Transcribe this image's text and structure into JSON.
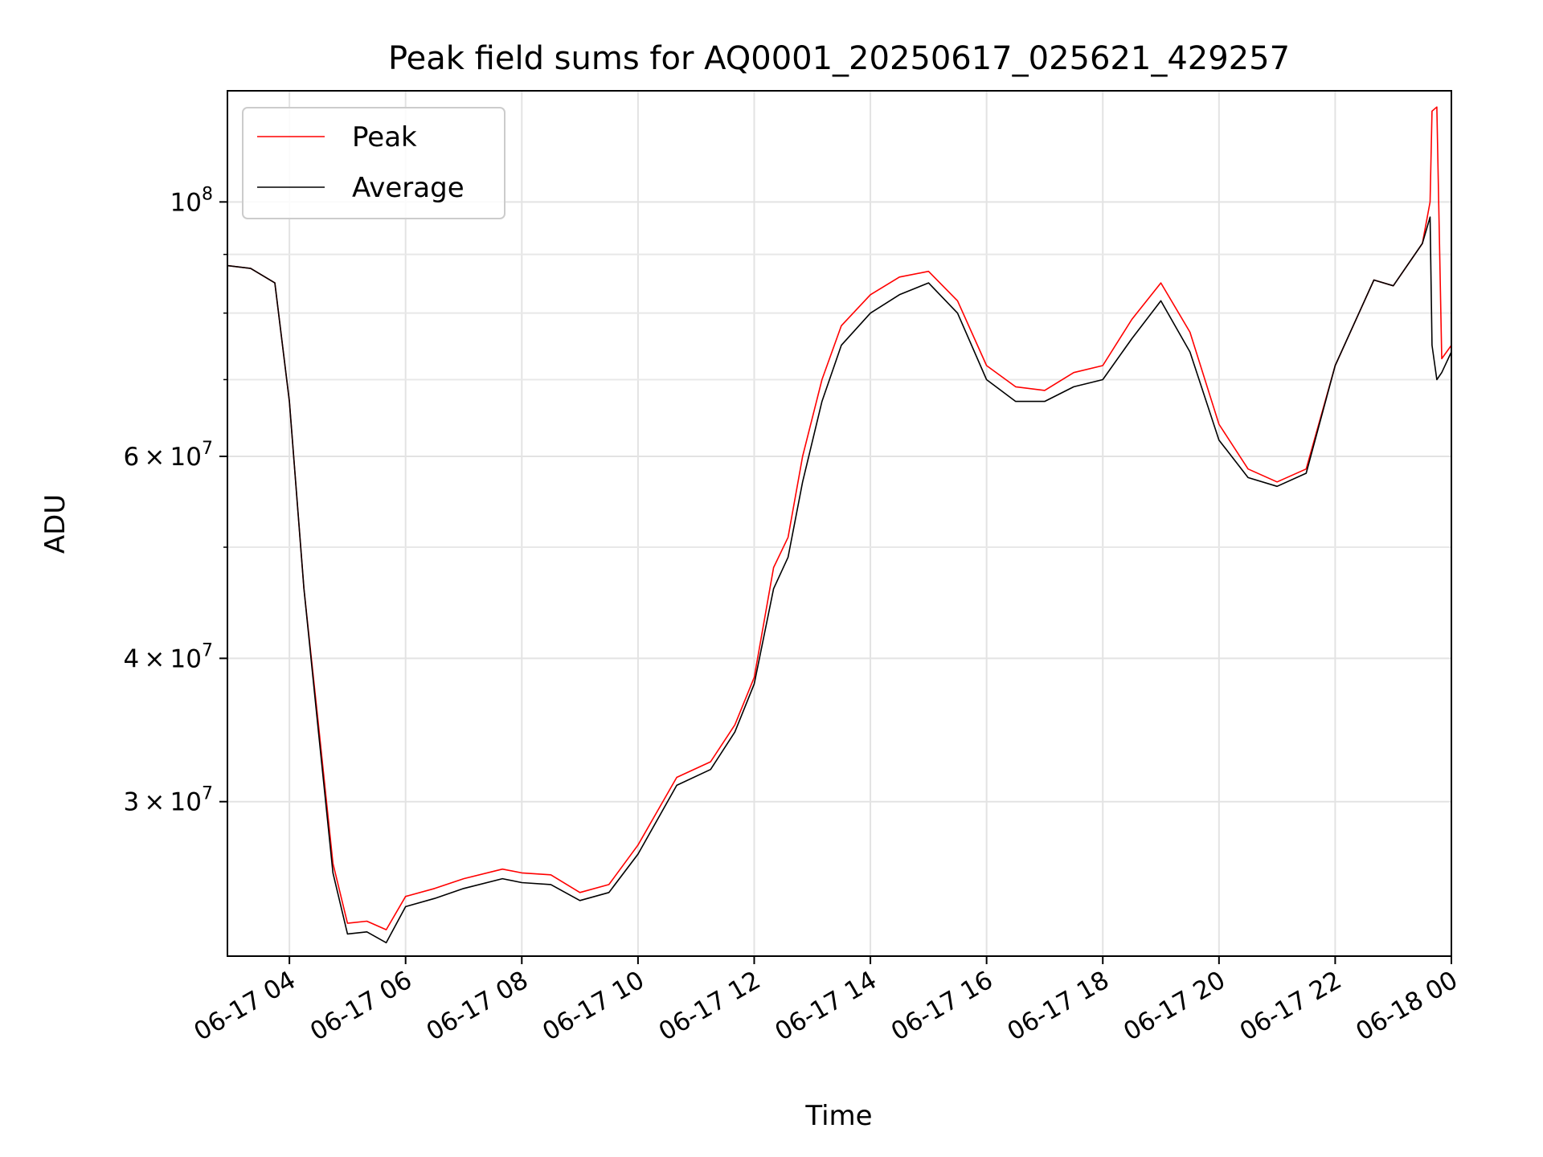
{
  "chart_data": {
    "type": "line",
    "title": "Peak field sums for AQ0001_20250617_025621_429257",
    "xlabel": "Time",
    "ylabel": "ADU",
    "yscale": "log",
    "xlim": [
      "2025-06-17 02:56",
      "2025-06-18 00:00"
    ],
    "ylim": [
      22000000,
      125000000
    ],
    "grid": true,
    "legend": "upper left",
    "x_ticks": [
      "06-17 04",
      "06-17 06",
      "06-17 08",
      "06-17 10",
      "06-17 12",
      "06-17 14",
      "06-17 16",
      "06-17 18",
      "06-17 20",
      "06-17 22",
      "06-18 00"
    ],
    "x_tick_values": [
      "2025-06-17 04:00",
      "2025-06-17 06:00",
      "2025-06-17 08:00",
      "2025-06-17 10:00",
      "2025-06-17 12:00",
      "2025-06-17 14:00",
      "2025-06-17 16:00",
      "2025-06-17 18:00",
      "2025-06-17 20:00",
      "2025-06-17 22:00",
      "2025-06-18 00:00"
    ],
    "y_major_ticks": [
      {
        "value": 30000000,
        "mantissa": "3",
        "base": "10",
        "exp": "7"
      },
      {
        "value": 40000000,
        "mantissa": "4",
        "base": "10",
        "exp": "7"
      },
      {
        "value": 60000000,
        "mantissa": "6",
        "base": "10",
        "exp": "7"
      },
      {
        "value": 100000000,
        "mantissa": "",
        "base": "10",
        "exp": "8"
      }
    ],
    "y_minor_ticks": [
      50000000,
      70000000,
      80000000,
      90000000
    ],
    "colors": {
      "Peak": "#ff0000",
      "Average": "#000000"
    },
    "series": [
      {
        "name": "Peak",
        "x": [
          "2025-06-17 02:56",
          "2025-06-17 03:20",
          "2025-06-17 03:45",
          "2025-06-17 04:00",
          "2025-06-17 04:15",
          "2025-06-17 04:30",
          "2025-06-17 04:45",
          "2025-06-17 05:00",
          "2025-06-17 05:20",
          "2025-06-17 05:40",
          "2025-06-17 06:00",
          "2025-06-17 06:30",
          "2025-06-17 07:00",
          "2025-06-17 07:40",
          "2025-06-17 08:00",
          "2025-06-17 08:30",
          "2025-06-17 09:00",
          "2025-06-17 09:30",
          "2025-06-17 10:00",
          "2025-06-17 10:40",
          "2025-06-17 11:15",
          "2025-06-17 11:40",
          "2025-06-17 12:00",
          "2025-06-17 12:20",
          "2025-06-17 12:35",
          "2025-06-17 12:50",
          "2025-06-17 13:10",
          "2025-06-17 13:30",
          "2025-06-17 14:00",
          "2025-06-17 14:30",
          "2025-06-17 15:00",
          "2025-06-17 15:30",
          "2025-06-17 16:00",
          "2025-06-17 16:30",
          "2025-06-17 17:00",
          "2025-06-17 17:30",
          "2025-06-17 18:00",
          "2025-06-17 18:30",
          "2025-06-17 19:00",
          "2025-06-17 19:30",
          "2025-06-17 20:00",
          "2025-06-17 20:30",
          "2025-06-17 21:00",
          "2025-06-17 21:30",
          "2025-06-17 22:00",
          "2025-06-17 22:40",
          "2025-06-17 23:00",
          "2025-06-17 23:30",
          "2025-06-17 23:38",
          "2025-06-17 23:40",
          "2025-06-17 23:45",
          "2025-06-17 23:50",
          "2025-06-18 00:00"
        ],
        "y": [
          88000000,
          87500000,
          85000000,
          67000000,
          46000000,
          35000000,
          26500000,
          23500000,
          23600000,
          23200000,
          24800000,
          25200000,
          25700000,
          26200000,
          26000000,
          25900000,
          25000000,
          25400000,
          27500000,
          31500000,
          32500000,
          35000000,
          38500000,
          48000000,
          51000000,
          60000000,
          70000000,
          78000000,
          83000000,
          86000000,
          87000000,
          82000000,
          72000000,
          69000000,
          68500000,
          71000000,
          72000000,
          79000000,
          85000000,
          77000000,
          64000000,
          58500000,
          57000000,
          58500000,
          72000000,
          85500000,
          84500000,
          92000000,
          100000000,
          120000000,
          121000000,
          73000000,
          75000000
        ]
      },
      {
        "name": "Average",
        "x": [
          "2025-06-17 02:56",
          "2025-06-17 03:20",
          "2025-06-17 03:45",
          "2025-06-17 04:00",
          "2025-06-17 04:15",
          "2025-06-17 04:30",
          "2025-06-17 04:45",
          "2025-06-17 05:00",
          "2025-06-17 05:20",
          "2025-06-17 05:40",
          "2025-06-17 06:00",
          "2025-06-17 06:30",
          "2025-06-17 07:00",
          "2025-06-17 07:40",
          "2025-06-17 08:00",
          "2025-06-17 08:30",
          "2025-06-17 09:00",
          "2025-06-17 09:30",
          "2025-06-17 10:00",
          "2025-06-17 10:40",
          "2025-06-17 11:15",
          "2025-06-17 11:40",
          "2025-06-17 12:00",
          "2025-06-17 12:20",
          "2025-06-17 12:35",
          "2025-06-17 12:50",
          "2025-06-17 13:10",
          "2025-06-17 13:30",
          "2025-06-17 14:00",
          "2025-06-17 14:30",
          "2025-06-17 15:00",
          "2025-06-17 15:30",
          "2025-06-17 16:00",
          "2025-06-17 16:30",
          "2025-06-17 17:00",
          "2025-06-17 17:30",
          "2025-06-17 18:00",
          "2025-06-17 18:30",
          "2025-06-17 19:00",
          "2025-06-17 19:30",
          "2025-06-17 20:00",
          "2025-06-17 20:30",
          "2025-06-17 21:00",
          "2025-06-17 21:30",
          "2025-06-17 22:00",
          "2025-06-17 22:40",
          "2025-06-17 23:00",
          "2025-06-17 23:30",
          "2025-06-17 23:38",
          "2025-06-17 23:40",
          "2025-06-17 23:45",
          "2025-06-17 23:50",
          "2025-06-18 00:00"
        ],
        "y": [
          88000000,
          87500000,
          85000000,
          67000000,
          46000000,
          34500000,
          26000000,
          23000000,
          23100000,
          22600000,
          24300000,
          24700000,
          25200000,
          25700000,
          25500000,
          25400000,
          24600000,
          25000000,
          27000000,
          31000000,
          32000000,
          34500000,
          38000000,
          46000000,
          49000000,
          57000000,
          67000000,
          75000000,
          80000000,
          83000000,
          85000000,
          80000000,
          70000000,
          67000000,
          67000000,
          69000000,
          70000000,
          76000000,
          82000000,
          74000000,
          62000000,
          57500000,
          56500000,
          58000000,
          72000000,
          85500000,
          84500000,
          92000000,
          97000000,
          75000000,
          70000000,
          71000000,
          74000000
        ]
      }
    ]
  }
}
